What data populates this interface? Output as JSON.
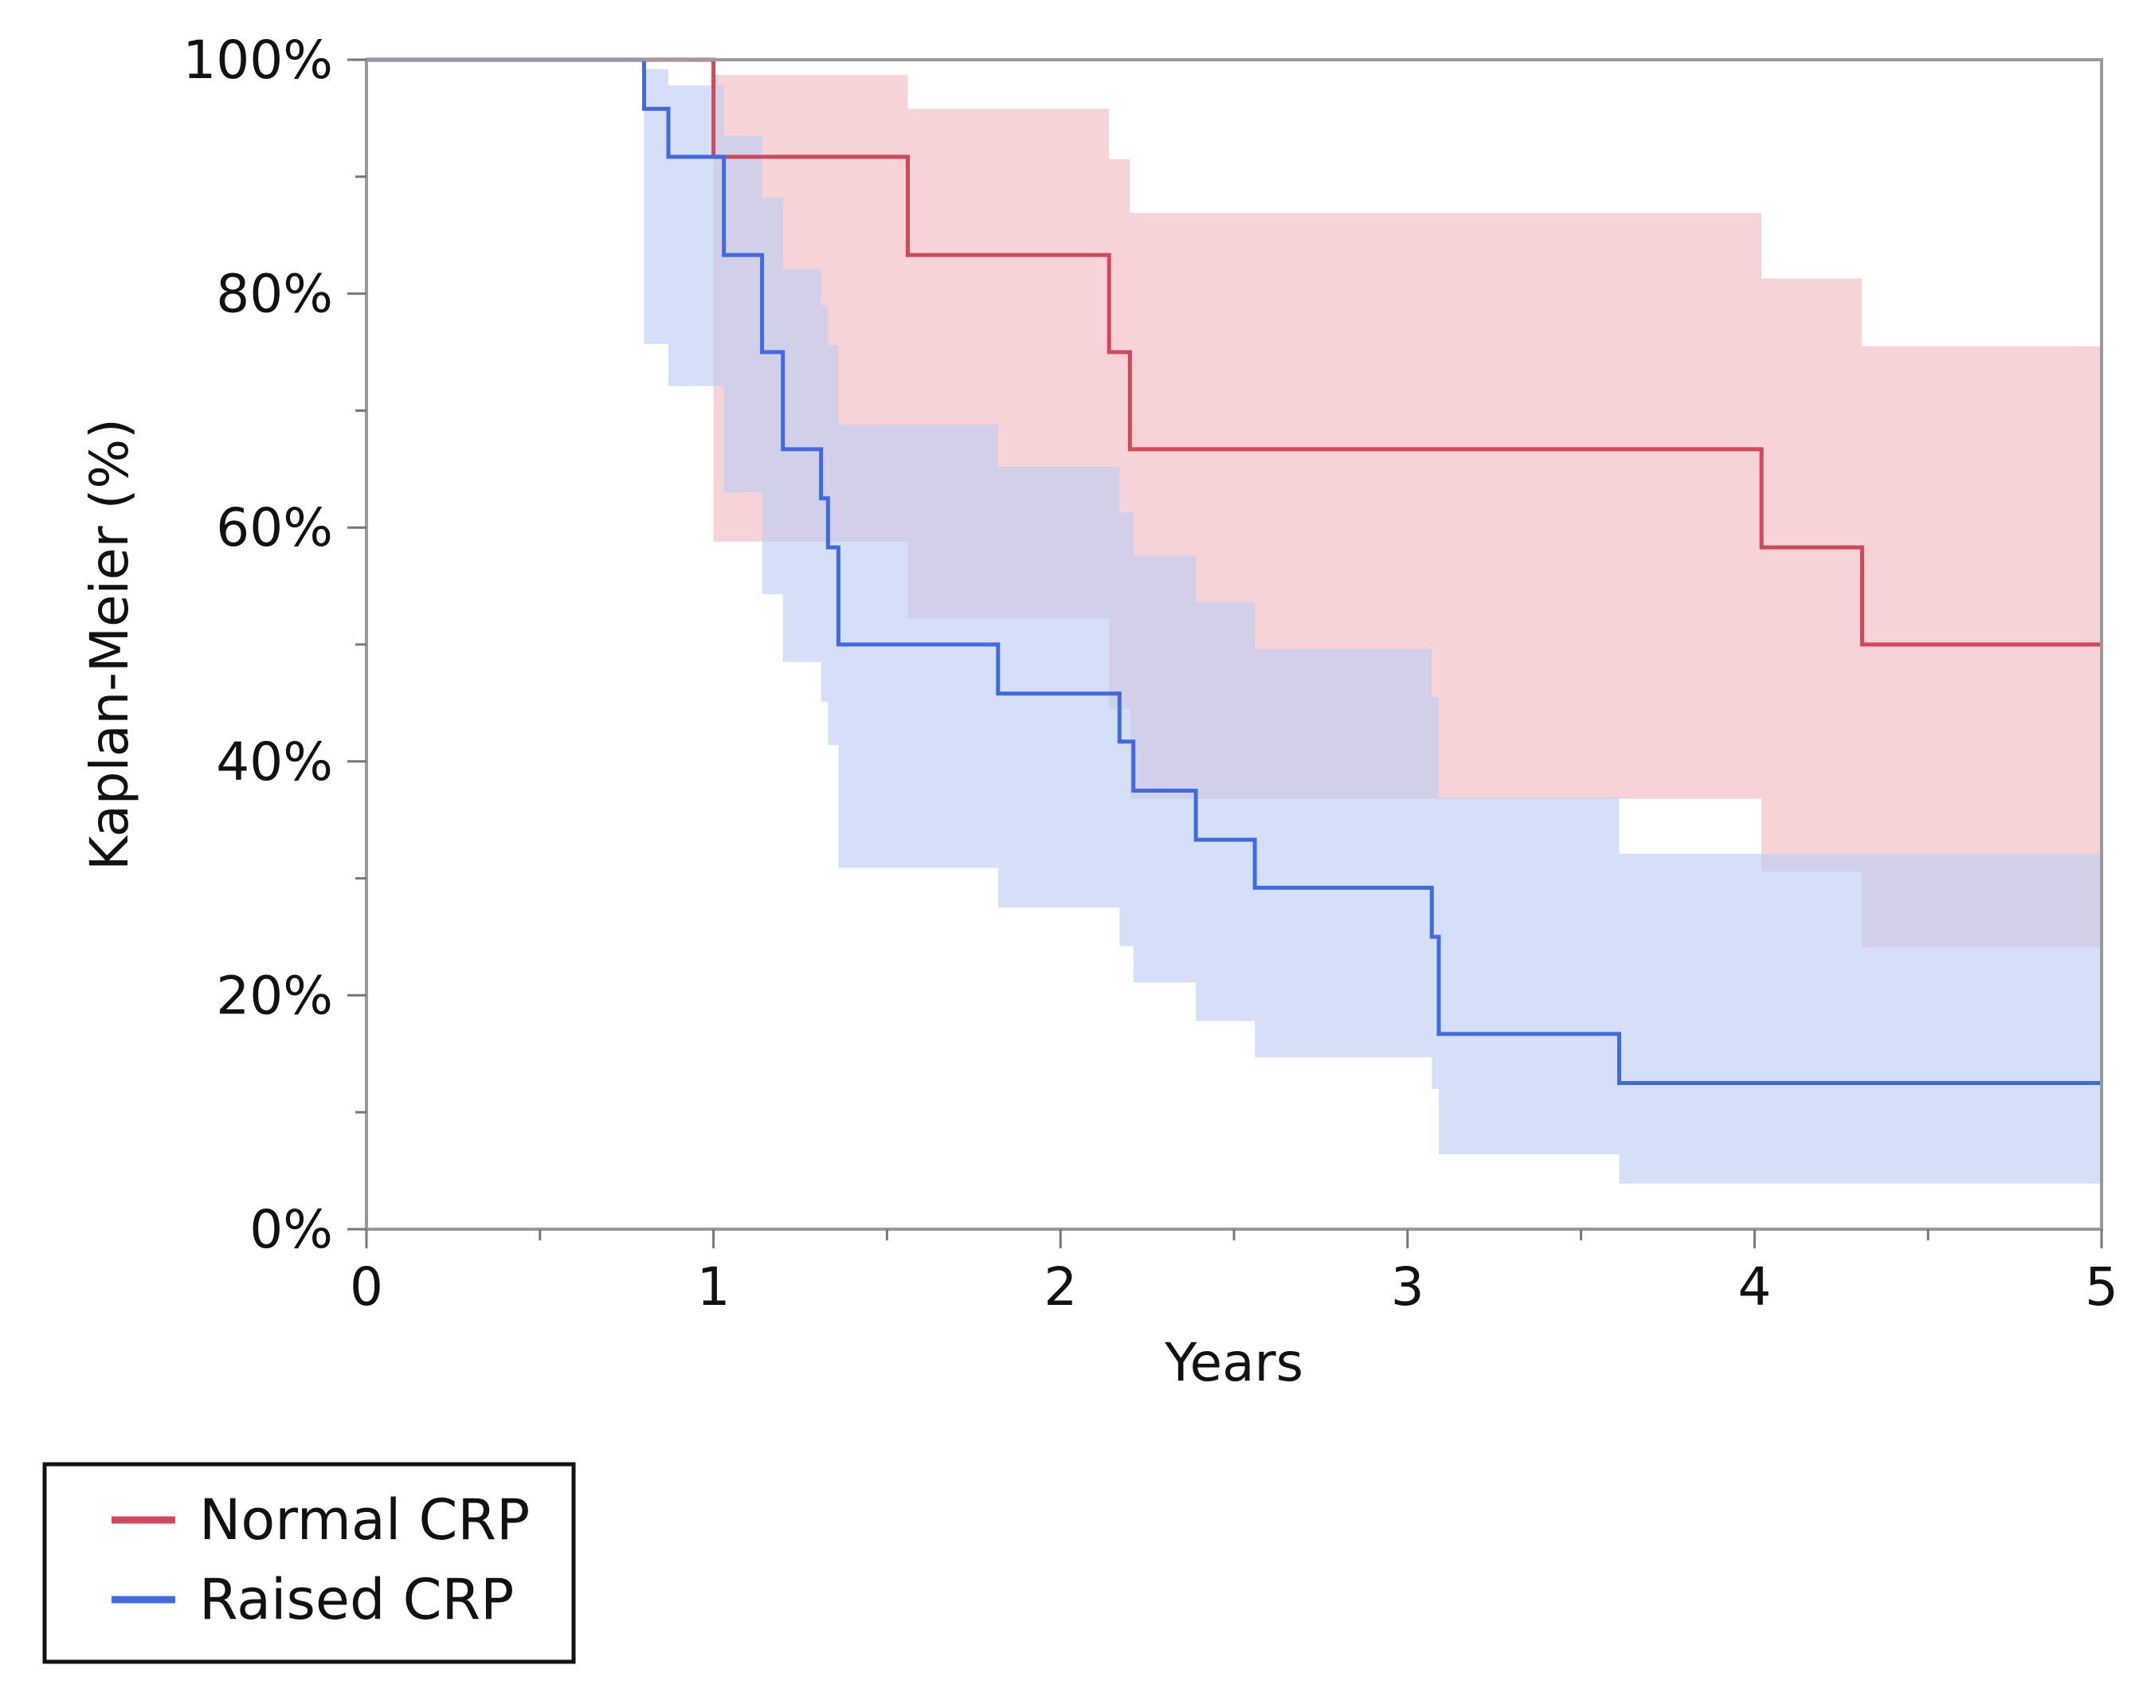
{
  "chart_data": {
    "type": "line",
    "subtype": "kaplan-meier-step",
    "title": "",
    "xlabel": "Years",
    "ylabel": "Kaplan-Meier (%)",
    "xlim": [
      0,
      5
    ],
    "ylim": [
      0,
      100
    ],
    "x_ticks": [
      0,
      1,
      2,
      3,
      4,
      5
    ],
    "x_tick_labels": [
      "0",
      "1",
      "2",
      "3",
      "4",
      "5"
    ],
    "y_ticks": [
      0,
      20,
      40,
      60,
      80,
      100
    ],
    "y_tick_labels": [
      "0%",
      "20%",
      "40%",
      "60%",
      "80%",
      "100%"
    ],
    "grid": false,
    "legend_position": "bottom-left",
    "series": [
      {
        "name": "Normal CRP",
        "color": "#d0485a",
        "band_color": "#f1b8bf",
        "x": [
          0,
          1.0,
          1.56,
          2.14,
          2.2,
          4.02,
          4.31,
          5.0
        ],
        "y": [
          100,
          91.7,
          83.3,
          75.0,
          66.7,
          58.3,
          50.0,
          50.0
        ],
        "lower": [
          100,
          58.8,
          52.2,
          44.5,
          36.8,
          30.6,
          24.1,
          24.1
        ],
        "upper": [
          100,
          98.7,
          95.8,
          91.5,
          86.9,
          81.3,
          75.5,
          75.5
        ]
      },
      {
        "name": "Raised CRP",
        "color": "#4169e1",
        "band_color": "#bccdf4",
        "x": [
          0,
          0.8,
          0.87,
          1.03,
          1.14,
          1.2,
          1.31,
          1.33,
          1.36,
          1.82,
          2.17,
          2.21,
          2.39,
          2.56,
          3.07,
          3.09,
          3.61,
          5.0
        ],
        "y": [
          100,
          95.8,
          91.7,
          83.3,
          75.0,
          66.7,
          62.5,
          58.3,
          50.0,
          45.8,
          41.7,
          37.5,
          33.3,
          29.2,
          25.0,
          16.7,
          12.5,
          12.5
        ],
        "lower": [
          100,
          75.7,
          72.1,
          63.0,
          54.3,
          48.5,
          45.1,
          41.4,
          30.9,
          27.5,
          24.2,
          21.1,
          17.8,
          14.7,
          12.0,
          6.4,
          3.9,
          3.9
        ],
        "upper": [
          100,
          99.2,
          97.8,
          93.5,
          88.2,
          82.1,
          79.0,
          75.6,
          68.8,
          65.2,
          61.3,
          57.6,
          53.6,
          49.6,
          45.5,
          36.9,
          32.1,
          32.1
        ]
      }
    ]
  }
}
